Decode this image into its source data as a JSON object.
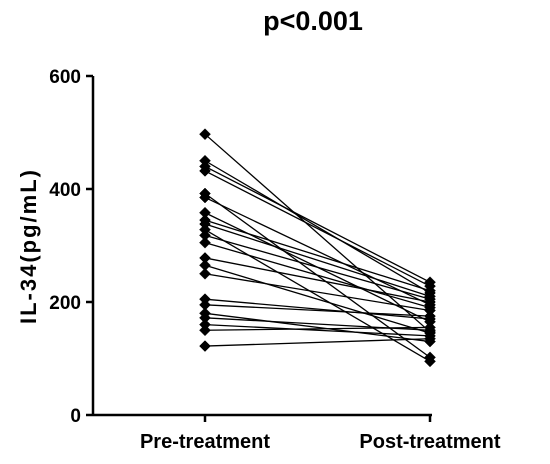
{
  "chart_data": {
    "type": "line",
    "title": "p<0.001",
    "ylabel": "IL-34(pg/mL)",
    "xlabel": "",
    "categories": [
      "Pre-treatment",
      "Post-treatment"
    ],
    "ylim": [
      0,
      600
    ],
    "yticks": [
      "0",
      "200",
      "400",
      "600"
    ],
    "grid": false,
    "legend": "none",
    "series": [
      {
        "values": [
          497,
          147
        ]
      },
      {
        "values": [
          450,
          216
        ]
      },
      {
        "values": [
          440,
          235
        ]
      },
      {
        "values": [
          432,
          228
        ]
      },
      {
        "values": [
          392,
          102
        ]
      },
      {
        "values": [
          385,
          195
        ]
      },
      {
        "values": [
          358,
          165
        ]
      },
      {
        "values": [
          345,
          220
        ]
      },
      {
        "values": [
          338,
          210
        ]
      },
      {
        "values": [
          328,
          95
        ]
      },
      {
        "values": [
          318,
          205
        ]
      },
      {
        "values": [
          305,
          190
        ]
      },
      {
        "values": [
          278,
          200
        ]
      },
      {
        "values": [
          265,
          145
        ]
      },
      {
        "values": [
          250,
          185
        ]
      },
      {
        "values": [
          205,
          170
        ]
      },
      {
        "values": [
          195,
          175
        ]
      },
      {
        "values": [
          180,
          130
        ]
      },
      {
        "values": [
          172,
          150
        ]
      },
      {
        "values": [
          160,
          140
        ]
      },
      {
        "values": [
          150,
          155
        ]
      },
      {
        "values": [
          122,
          135
        ]
      }
    ]
  },
  "colors": {
    "line": "#000000",
    "marker": "#000000",
    "axis": "#000000"
  }
}
